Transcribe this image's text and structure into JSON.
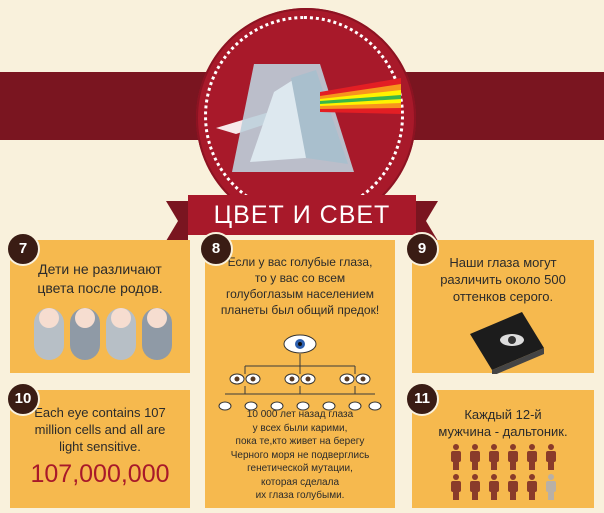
{
  "title": "ЦВЕТ И СВЕТ",
  "facts": [
    {
      "num": "7",
      "text_lines": [
        "Дети не различают",
        "цвета после родов."
      ]
    },
    {
      "num": "8",
      "text_lines": [
        "Если у вас голубые глаза,",
        "то у вас со всем",
        "голубоглазым населением",
        "планеты был общий предок!"
      ],
      "note_lines": [
        "10 000 лет назад глаза",
        "у всех были карими,",
        "пока те,кто живет на берегу",
        "Черного моря не подверглись",
        "генетической мутации,",
        "которая сделала",
        "их глаза голубыми."
      ]
    },
    {
      "num": "9",
      "text_lines": [
        "Наши глаза могут",
        "различить около 500",
        "оттенков серого."
      ]
    },
    {
      "num": "10",
      "text_lines": [
        "Each eye contains 107",
        "million cells and all are",
        "light sensitive."
      ],
      "big_number": "107,000,000"
    },
    {
      "num": "11",
      "text_lines": [
        "Каждый 12-й",
        "мужчина - дальтоник."
      ]
    }
  ],
  "colors": {
    "accent": "#a8192a",
    "band": "#7a1520",
    "card": "#f6b94e",
    "background": "#f9f1dc",
    "badge": "#3a1c14",
    "big_number": "#a8192a"
  },
  "icons": [
    "prism-icon",
    "baby-icon",
    "eye-icon",
    "book-icon",
    "person-icon"
  ]
}
